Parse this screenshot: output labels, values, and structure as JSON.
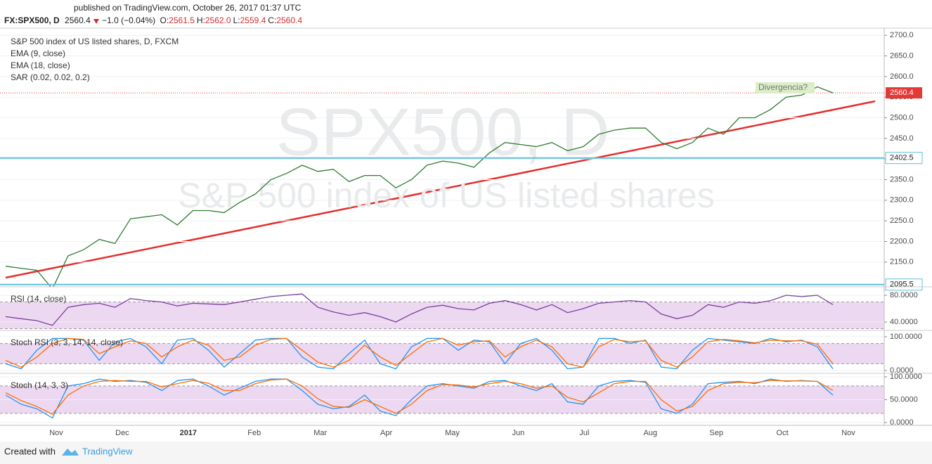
{
  "header": {
    "published": "published on TradingView.com, October 26, 2017 01:37 UTC",
    "symbol": "FX:SPX500, D",
    "last": "2560.4",
    "change": "−1.0 (−0.04%)",
    "ohlc": [
      {
        "key": "O:",
        "value": "2561.5"
      },
      {
        "key": "H:",
        "value": "2562.0"
      },
      {
        "key": "L:",
        "value": "2559.4"
      },
      {
        "key": "C:",
        "value": "2560.4"
      }
    ]
  },
  "time_axis": [
    "Nov",
    "Dec",
    "2017",
    "Feb",
    "Mar",
    "Apr",
    "May",
    "Jun",
    "Jul",
    "Aug",
    "Sep",
    "Oct",
    "Nov"
  ],
  "chart_data": [
    {
      "type": "line",
      "title": "S&P 500 index of US listed shares, D, FXCM",
      "watermark": [
        "SPX500, D",
        "S&P 500 index of US listed shares"
      ],
      "indicators": [
        "EMA (9, close)",
        "EMA (18, close)",
        "SAR (0.02, 0.02, 0.2)"
      ],
      "annotation": "Divergencia?",
      "color": "#2e7d32",
      "values": [
        2140,
        2135,
        2130,
        2085,
        2165,
        2180,
        2205,
        2195,
        2255,
        2260,
        2265,
        2240,
        2275,
        2275,
        2270,
        2295,
        2315,
        2350,
        2365,
        2385,
        2370,
        2375,
        2345,
        2360,
        2360,
        2330,
        2350,
        2385,
        2395,
        2390,
        2380,
        2415,
        2440,
        2435,
        2430,
        2440,
        2420,
        2430,
        2460,
        2470,
        2475,
        2475,
        2440,
        2425,
        2440,
        2475,
        2460,
        2500,
        2500,
        2520,
        2550,
        2555,
        2575,
        2560.4
      ],
      "levels": [
        2402.5,
        2095.5
      ],
      "level_color": "#5bc0de",
      "last_price": 2560.4,
      "last_color": "#e53935",
      "ylim": [
        2090,
        2714
      ],
      "yticks": [
        {
          "value": 2700,
          "label": "2700.0"
        },
        {
          "value": 2650,
          "label": "2650.0"
        },
        {
          "value": 2600,
          "label": "2600.0"
        },
        {
          "value": 2550,
          "label": "2550.0"
        },
        {
          "value": 2500,
          "label": "2500.0"
        },
        {
          "value": 2450,
          "label": "2450.0"
        },
        {
          "value": 2400,
          "label": "2400.0"
        },
        {
          "value": 2350,
          "label": "2350.0"
        },
        {
          "value": 2300,
          "label": "2300.0"
        },
        {
          "value": 2250,
          "label": "2250.0"
        },
        {
          "value": 2200,
          "label": "2200.0"
        },
        {
          "value": 2150,
          "label": "2150.0"
        }
      ]
    },
    {
      "type": "line",
      "title": "RSI (14, close)",
      "color": "#7b3f9e",
      "band": [
        70,
        30
      ],
      "values": [
        48,
        45,
        42,
        35,
        62,
        66,
        68,
        62,
        75,
        72,
        70,
        64,
        68,
        67,
        66,
        70,
        74,
        78,
        80,
        82,
        62,
        55,
        50,
        54,
        48,
        40,
        52,
        62,
        65,
        60,
        58,
        68,
        72,
        66,
        58,
        66,
        54,
        60,
        68,
        70,
        72,
        70,
        52,
        45,
        50,
        66,
        62,
        70,
        68,
        72,
        80,
        78,
        80,
        66
      ],
      "ylim": [
        29.5,
        90.5
      ],
      "yticks": [
        {
          "value": 80,
          "label": "80.0000"
        },
        {
          "value": 40,
          "label": "40.0000"
        }
      ]
    },
    {
      "type": "line",
      "title": "Stoch RSI (3, 3, 14, 14, close)",
      "band": [
        80,
        20
      ],
      "series": [
        {
          "color": "#2196f3",
          "values": [
            20,
            5,
            60,
            95,
            95,
            90,
            30,
            85,
            95,
            70,
            20,
            90,
            95,
            60,
            10,
            50,
            90,
            95,
            95,
            40,
            10,
            5,
            50,
            90,
            20,
            5,
            70,
            95,
            95,
            60,
            90,
            85,
            20,
            80,
            95,
            60,
            5,
            10,
            95,
            95,
            80,
            90,
            10,
            5,
            60,
            95,
            90,
            85,
            80,
            95,
            85,
            90,
            70,
            5
          ]
        },
        {
          "color": "#ff6d00",
          "values": [
            30,
            10,
            40,
            80,
            95,
            92,
            50,
            70,
            88,
            80,
            40,
            70,
            90,
            75,
            30,
            40,
            75,
            92,
            95,
            60,
            25,
            10,
            30,
            75,
            40,
            15,
            50,
            85,
            95,
            75,
            85,
            88,
            40,
            70,
            90,
            70,
            20,
            10,
            70,
            92,
            85,
            88,
            30,
            10,
            40,
            85,
            92,
            88,
            82,
            90,
            88,
            88,
            78,
            20
          ]
        }
      ],
      "ylim": [
        -6.25,
        114.6
      ],
      "yticks": [
        {
          "value": 100,
          "label": "100.0000"
        },
        {
          "value": 0,
          "label": "0.0000"
        }
      ]
    },
    {
      "type": "line",
      "title": "Stoch (14, 3, 3)",
      "band": [
        80,
        20
      ],
      "series": [
        {
          "color": "#2196f3",
          "values": [
            60,
            40,
            30,
            10,
            80,
            85,
            95,
            90,
            92,
            88,
            70,
            92,
            95,
            80,
            60,
            75,
            90,
            95,
            95,
            70,
            40,
            30,
            35,
            60,
            25,
            15,
            50,
            80,
            85,
            80,
            75,
            90,
            92,
            80,
            70,
            85,
            45,
            40,
            80,
            90,
            92,
            88,
            30,
            20,
            40,
            85,
            88,
            90,
            85,
            95,
            90,
            92,
            90,
            60
          ]
        },
        {
          "color": "#ff6d00",
          "values": [
            65,
            48,
            35,
            18,
            60,
            80,
            90,
            92,
            90,
            90,
            78,
            85,
            92,
            86,
            70,
            70,
            85,
            93,
            95,
            80,
            52,
            35,
            33,
            50,
            35,
            20,
            40,
            70,
            83,
            82,
            78,
            85,
            90,
            85,
            75,
            80,
            55,
            45,
            65,
            85,
            90,
            90,
            50,
            25,
            35,
            70,
            85,
            88,
            87,
            92,
            91,
            91,
            90,
            70
          ]
        }
      ],
      "ylim": [
        -6.2,
        104.6
      ],
      "yticks": [
        {
          "value": 100,
          "label": "100.0000"
        },
        {
          "value": 50,
          "label": "50.0000"
        },
        {
          "value": 0,
          "label": "0.0000"
        }
      ]
    }
  ],
  "footer": {
    "created": "Created with",
    "brand": "TradingView"
  }
}
